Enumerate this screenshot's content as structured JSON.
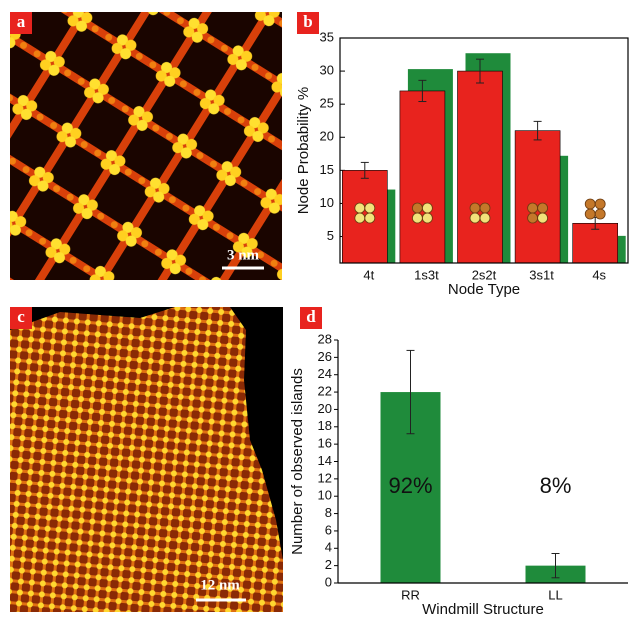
{
  "panels": [
    {
      "label": "a",
      "scale_bar": "3 nm"
    },
    {
      "label": "c",
      "scale_bar": "12 nm"
    }
  ],
  "chart_data": [
    {
      "type": "bar",
      "panel_label": "b",
      "categories": [
        "4t",
        "1s3t",
        "2s2t",
        "3s1t",
        "4s"
      ],
      "x_label": "Node Type",
      "y_label": "Node Probability %",
      "ylim": [
        1,
        35
      ],
      "yticks": [
        5,
        10,
        15,
        20,
        25,
        30,
        35
      ],
      "series": [
        {
          "color": "#e8231e",
          "values": [
            15,
            27,
            30,
            21,
            7
          ],
          "errors": [
            1.2,
            1.6,
            1.8,
            1.4,
            0.9
          ]
        },
        {
          "color": "#1f8b3b",
          "values": [
            12.1,
            30.3,
            32.7,
            17.2,
            5.1
          ]
        }
      ]
    },
    {
      "type": "bar",
      "panel_label": "d",
      "categories": [
        "RR",
        "LL"
      ],
      "x_label": "Windmill Structure",
      "y_label": "Number of observed islands",
      "ylim": [
        0,
        28
      ],
      "yticks": [
        0,
        2,
        4,
        6,
        8,
        10,
        12,
        14,
        16,
        18,
        20,
        22,
        24,
        26,
        28
      ],
      "series": [
        {
          "color": "#1f8b3b",
          "values": [
            22,
            2
          ],
          "errors": [
            4.8,
            1.4
          ]
        }
      ],
      "annotations": [
        "92%",
        "8%"
      ]
    }
  ]
}
